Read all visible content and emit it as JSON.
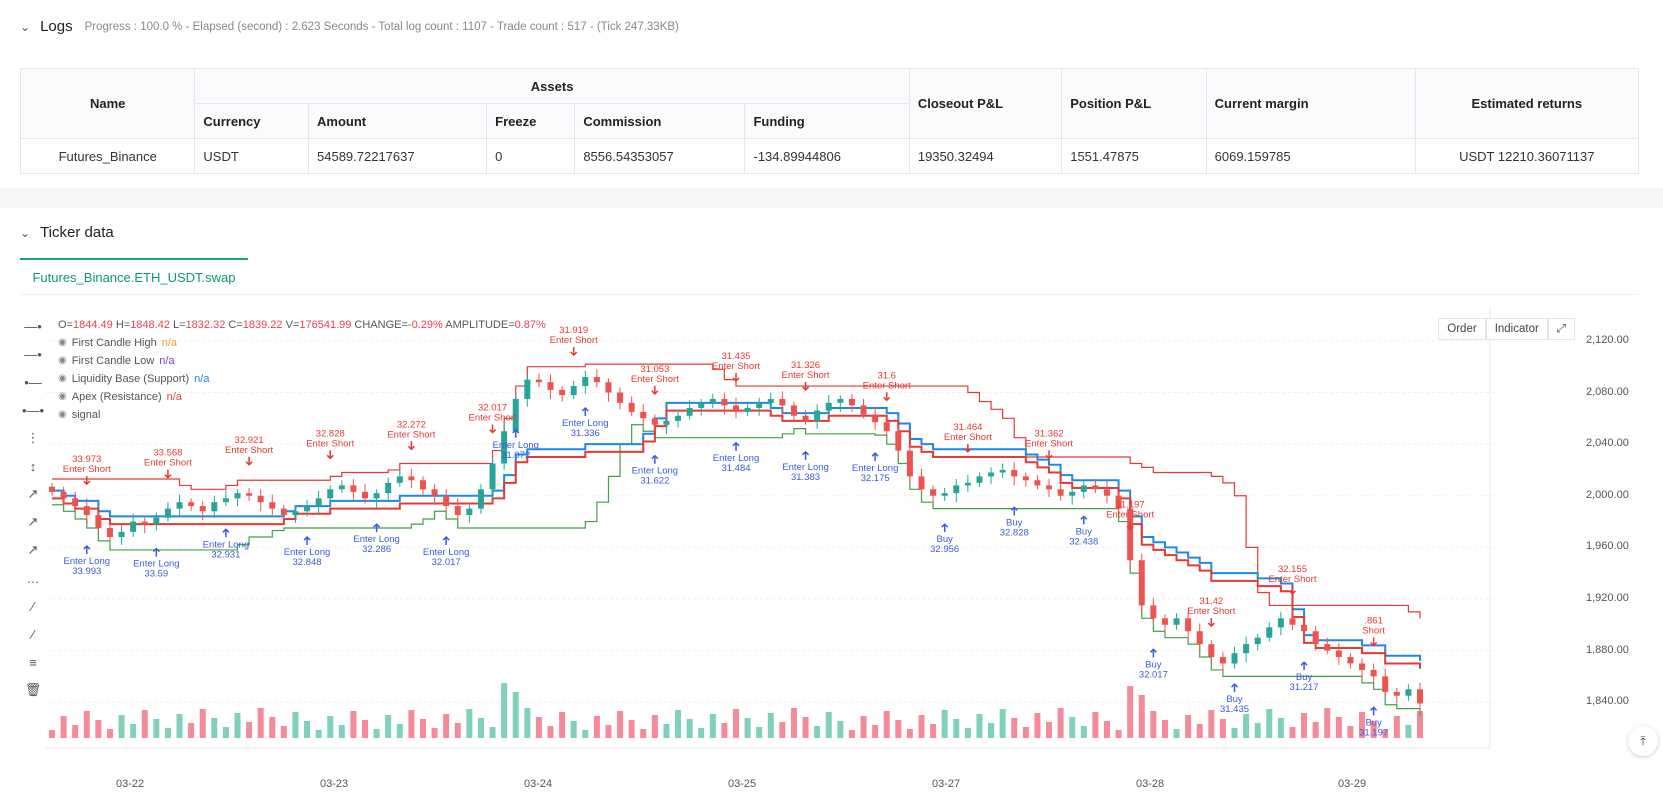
{
  "logs": {
    "title": "Logs",
    "meta": "Progress : 100.0 % - Elapsed (second) : 2.623 Seconds - Total log count : 1107 - Trade count : 517 - (Tick 247.33KB)",
    "table": {
      "headers": {
        "name": "Name",
        "assets": "Assets",
        "currency": "Currency",
        "amount": "Amount",
        "freeze": "Freeze",
        "commission": "Commission",
        "funding": "Funding",
        "closeout": "Closeout P&L",
        "position": "Position P&L",
        "margin": "Current margin",
        "returns": "Estimated returns"
      },
      "row": {
        "name": "Futures_Binance",
        "currency": "USDT",
        "amount": "54589.72217637",
        "freeze": "0",
        "commission": "8556.54353057",
        "funding": "-134.89944806",
        "closeout": "19350.32494",
        "position": "1551.47875",
        "margin": "6069.159785",
        "returns": "USDT 12210.36071137"
      }
    }
  },
  "ticker": {
    "title": "Ticker data",
    "tab": "Futures_Binance.ETH_USDT.swap",
    "buttons": {
      "order": "Order",
      "indicator": "Indicator"
    },
    "ohlc": {
      "o_label": "O=",
      "o": "1844.49",
      "h_label": "H=",
      "h": "1848.42",
      "l_label": "L=",
      "l": "1832.32",
      "c_label": "C=",
      "c": "1839.22",
      "v_label": "V=",
      "v": "176541.99",
      "change_label": "CHANGE=",
      "change": "-0.29%",
      "amp_label": "AMPLITUDE=",
      "amp": "0.87%"
    },
    "legend": [
      {
        "label": "First Candle High",
        "value": "n/a",
        "color": "#f0a020"
      },
      {
        "label": "First Candle Low",
        "value": "n/a",
        "color": "#7b3fe4"
      },
      {
        "label": "Liquidity Base (Support)",
        "value": "n/a",
        "color": "#1e88e5"
      },
      {
        "label": "Apex (Resistance)",
        "value": "n/a",
        "color": "#e8434f"
      },
      {
        "label": "signal",
        "value": "",
        "color": "#888888"
      }
    ],
    "y_ticks": [
      "2,120.00",
      "2,080.00",
      "2,040.00",
      "2,000.00",
      "1,960.00",
      "1,920.00",
      "1,880.00",
      "1,840.00"
    ],
    "x_ticks": [
      "03-22",
      "03-23",
      "03-24",
      "03-25",
      "03-27",
      "03-28",
      "03-29"
    ]
  },
  "chart_data": {
    "type": "candlestick",
    "ylim": [
      1820,
      2130
    ],
    "series_colors": {
      "up": "#26a69a",
      "down": "#ef5350",
      "resistance": "#e53935",
      "support": "#43a047",
      "blue": "#1e88e5"
    },
    "close": [
      2003,
      1998,
      1992,
      1985,
      1975,
      1968,
      1972,
      1980,
      1978,
      1983,
      1990,
      1995,
      1992,
      1988,
      1995,
      1998,
      2002,
      2000,
      1995,
      1990,
      1985,
      1988,
      1992,
      1998,
      2005,
      2008,
      2003,
      1998,
      2002,
      2010,
      2015,
      2012,
      2005,
      2000,
      1992,
      1985,
      1990,
      2005,
      2025,
      2050,
      2075,
      2090,
      2088,
      2082,
      2078,
      2085,
      2092,
      2088,
      2080,
      2072,
      2065,
      2060,
      2055,
      2058,
      2062,
      2068,
      2072,
      2075,
      2070,
      2065,
      2068,
      2072,
      2075,
      2070,
      2062,
      2058,
      2066,
      2072,
      2075,
      2070,
      2063,
      2057,
      2050,
      2035,
      2015,
      2005,
      2000,
      2002,
      2008,
      2010,
      2015,
      2018,
      2020,
      2015,
      2012,
      2008,
      2005,
      2000,
      2003,
      2008,
      2005,
      2000,
      1990,
      1950,
      1915,
      1905,
      1900,
      1905,
      1895,
      1885,
      1875,
      1870,
      1878,
      1885,
      1890,
      1898,
      1905,
      1900,
      1895,
      1885,
      1880,
      1875,
      1870,
      1865,
      1860,
      1848,
      1845,
      1850,
      1839
    ],
    "annotations": [
      {
        "kind": "short",
        "label": "Enter Short",
        "value": "33.973"
      },
      {
        "kind": "short",
        "label": "Enter Short",
        "value": "33.568"
      },
      {
        "kind": "short",
        "label": "Enter Short",
        "value": "32.921"
      },
      {
        "kind": "short",
        "label": "Enter Short",
        "value": "32.828"
      },
      {
        "kind": "short",
        "label": "Enter Short",
        "value": "32.272"
      },
      {
        "kind": "short",
        "label": "Enter Short",
        "value": "32.017"
      },
      {
        "kind": "short",
        "label": "Enter Short",
        "value": "31.919"
      },
      {
        "kind": "short",
        "label": "Enter Short",
        "value": "31.053"
      },
      {
        "kind": "short",
        "label": "Enter Short",
        "value": "31.435"
      },
      {
        "kind": "short",
        "label": "Enter Short",
        "value": "31.326"
      },
      {
        "kind": "short",
        "label": "Enter Short",
        "value": "31.6"
      },
      {
        "kind": "short",
        "label": "Enter Short",
        "value": "31.464"
      },
      {
        "kind": "short",
        "label": "Enter Short",
        "value": "31.362"
      },
      {
        "kind": "short",
        "label": "Enter Short",
        "value": "31.197"
      },
      {
        "kind": "short",
        "label": "Enter Short",
        "value": "31.42"
      },
      {
        "kind": "short",
        "label": "Enter Short",
        "value": "32.155"
      },
      {
        "kind": "short",
        "label": "Short",
        "value": ".861"
      },
      {
        "kind": "long",
        "label": "Enter Long",
        "value": "33.993"
      },
      {
        "kind": "long",
        "label": "Enter Long",
        "value": "33.59"
      },
      {
        "kind": "long",
        "label": "Enter Long",
        "value": "32.931"
      },
      {
        "kind": "long",
        "label": "Enter Long",
        "value": "32.848"
      },
      {
        "kind": "long",
        "label": "Enter Long",
        "value": "32.286"
      },
      {
        "kind": "long",
        "label": "Enter Long",
        "value": "32.017"
      },
      {
        "kind": "long",
        "label": "Enter Long",
        "value": "31.072"
      },
      {
        "kind": "long",
        "label": "Enter Long",
        "value": "31.336"
      },
      {
        "kind": "long",
        "label": "Enter Long",
        "value": "31.622"
      },
      {
        "kind": "long",
        "label": "Enter Long",
        "value": "31.484"
      },
      {
        "kind": "long",
        "label": "Enter Long",
        "value": "31.383"
      },
      {
        "kind": "long",
        "label": "Enter Long",
        "value": "32.175"
      },
      {
        "kind": "buy",
        "label": "Buy",
        "value": "32.956"
      },
      {
        "kind": "buy",
        "label": "Buy",
        "value": "32.828"
      },
      {
        "kind": "buy",
        "label": "Buy",
        "value": "32.438"
      },
      {
        "kind": "buy",
        "label": "Buy",
        "value": "32.017"
      },
      {
        "kind": "buy",
        "label": "Buy",
        "value": "31.435"
      },
      {
        "kind": "buy",
        "label": "Buy",
        "value": "31.217"
      },
      {
        "kind": "buy",
        "label": "Buy",
        "value": "31.197"
      }
    ]
  }
}
